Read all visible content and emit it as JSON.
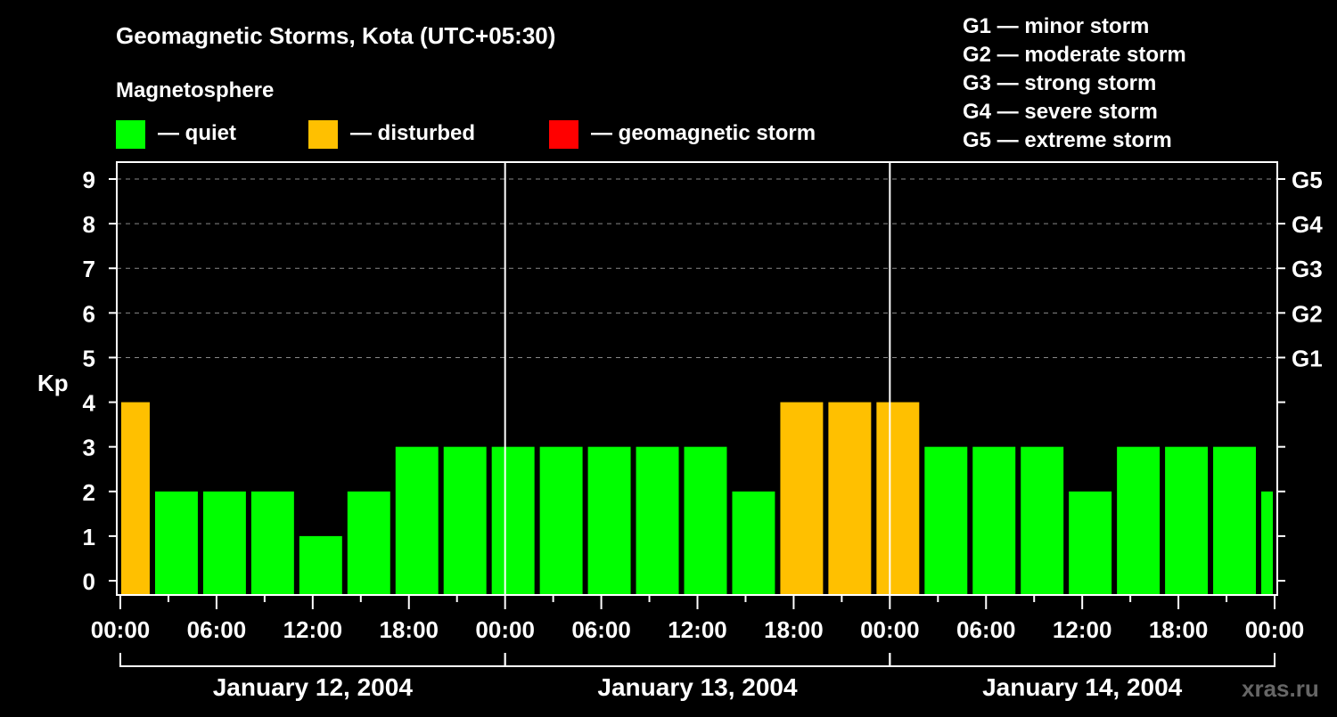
{
  "chart_data": {
    "type": "bar",
    "title": "Geomagnetic Storms, Kota (UTC+05:30)",
    "subtitle": "Magnetosphere",
    "ylabel": "Kp",
    "ylim": [
      0,
      9
    ],
    "yticks": [
      "0",
      "1",
      "2",
      "3",
      "4",
      "5",
      "6",
      "7",
      "8",
      "9"
    ],
    "right_ticks": [
      {
        "kp": 5,
        "label": "G1"
      },
      {
        "kp": 6,
        "label": "G2"
      },
      {
        "kp": 7,
        "label": "G3"
      },
      {
        "kp": 8,
        "label": "G4"
      },
      {
        "kp": 9,
        "label": "G5"
      }
    ],
    "xlim_hours": [
      0,
      72
    ],
    "xtick_labels": [
      "00:00",
      "06:00",
      "12:00",
      "18:00",
      "00:00",
      "06:00",
      "12:00",
      "18:00",
      "00:00",
      "06:00",
      "12:00",
      "18:00",
      "00:00"
    ],
    "days": [
      "January 12, 2004",
      "January 13, 2004",
      "January 14, 2004"
    ],
    "bar_interval_hours": 3,
    "first_bar_start_hour": -1,
    "values": [
      4,
      2,
      2,
      2,
      1,
      2,
      3,
      3,
      3,
      3,
      3,
      3,
      3,
      2,
      4,
      4,
      4,
      3,
      3,
      3,
      2,
      3,
      3,
      3,
      2
    ],
    "legend": [
      {
        "label": "— quiet",
        "color": "#00ff00"
      },
      {
        "label": "— disturbed",
        "color": "#ffc000"
      },
      {
        "label": "— geomagnetic storm",
        "color": "#ff0000"
      }
    ],
    "scale_legend": [
      "G1 — minor storm",
      "G2 — moderate storm",
      "G3 — strong storm",
      "G4 — severe storm",
      "G5 — extreme storm"
    ],
    "grid": true
  },
  "watermark": "xras.ru"
}
